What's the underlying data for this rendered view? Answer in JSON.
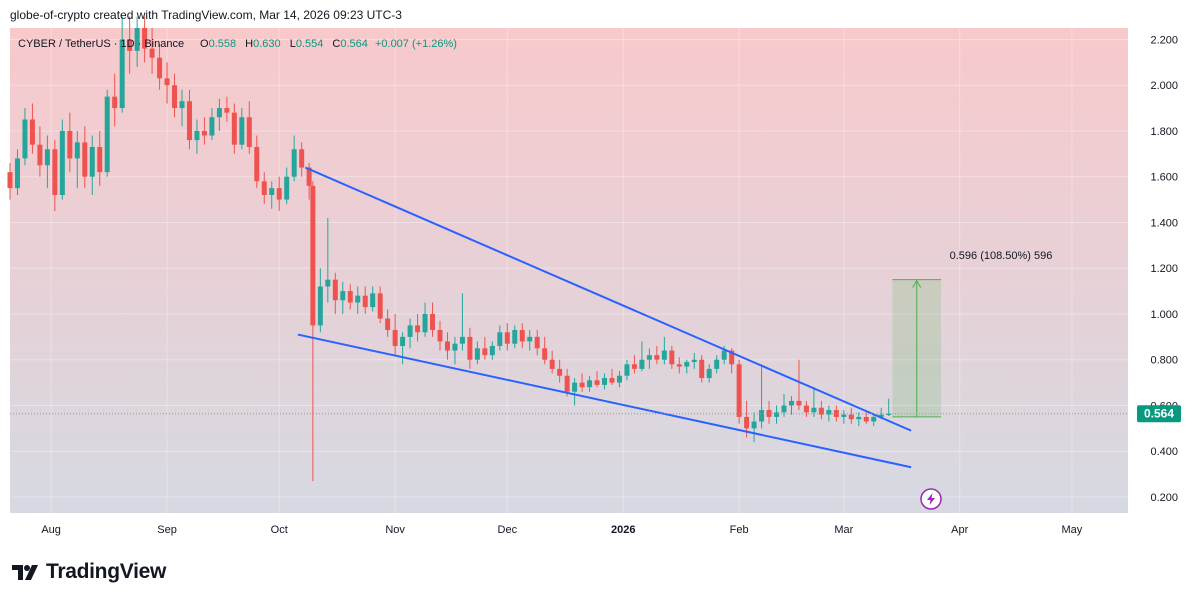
{
  "header": {
    "attribution": "globe-of-crypto created with TradingView.com, Mar 14, 2026 09:23 UTC-3"
  },
  "legend": {
    "symbol": "CYBER / TetherUS · 1D · Binance",
    "o_label": "O",
    "o_value": "0.558",
    "h_label": "H",
    "h_value": "0.630",
    "l_label": "L",
    "l_value": "0.554",
    "c_label": "C",
    "c_value": "0.564",
    "change": "+0.007 (+1.26%)"
  },
  "last_price": "0.564",
  "measure_label": "0.596 (108.50%) 596",
  "brand": {
    "name": "TradingView"
  },
  "colors": {
    "up": "#26a69a",
    "down": "#ef5350",
    "trendline": "#2962ff",
    "bg_top": "#f8c9cb",
    "bg_bottom": "#d6d9e2",
    "measure": "#4caf50",
    "badge": "#089981"
  },
  "icons": {
    "brand": "tradingview-logo-icon",
    "lightning": "lightning-icon"
  },
  "chart_data": {
    "type": "candlestick",
    "title": "CYBER / TetherUS · 1D · Binance",
    "x_ticks": [
      "Aug",
      "Sep",
      "Oct",
      "Nov",
      "Dec",
      "2026",
      "Feb",
      "Mar",
      "Apr",
      "May"
    ],
    "y_ticks": [
      "2.200",
      "2.000",
      "1.800",
      "1.600",
      "1.400",
      "1.200",
      "1.000",
      "0.800",
      "0.600",
      "0.400",
      "0.200"
    ],
    "ylim": [
      0.13,
      2.25
    ],
    "date_range": [
      "2025-07-21",
      "2026-05-16"
    ],
    "grid": true,
    "ohlc": [
      [
        "2025-07-21",
        1.62,
        1.66,
        1.5,
        1.55
      ],
      [
        "2025-07-23",
        1.55,
        1.72,
        1.52,
        1.68
      ],
      [
        "2025-07-25",
        1.68,
        1.9,
        1.65,
        1.85
      ],
      [
        "2025-07-27",
        1.85,
        1.92,
        1.7,
        1.74
      ],
      [
        "2025-07-29",
        1.74,
        1.82,
        1.6,
        1.65
      ],
      [
        "2025-07-31",
        1.65,
        1.78,
        1.55,
        1.72
      ],
      [
        "2025-08-02",
        1.72,
        1.76,
        1.45,
        1.52
      ],
      [
        "2025-08-04",
        1.52,
        1.85,
        1.5,
        1.8
      ],
      [
        "2025-08-06",
        1.8,
        1.88,
        1.62,
        1.68
      ],
      [
        "2025-08-08",
        1.68,
        1.8,
        1.55,
        1.75
      ],
      [
        "2025-08-10",
        1.75,
        1.82,
        1.55,
        1.6
      ],
      [
        "2025-08-12",
        1.6,
        1.78,
        1.52,
        1.73
      ],
      [
        "2025-08-14",
        1.73,
        1.8,
        1.56,
        1.62
      ],
      [
        "2025-08-16",
        1.62,
        1.98,
        1.6,
        1.95
      ],
      [
        "2025-08-18",
        1.95,
        2.05,
        1.82,
        1.9
      ],
      [
        "2025-08-20",
        1.9,
        2.3,
        1.88,
        2.2
      ],
      [
        "2025-08-22",
        2.2,
        2.3,
        2.05,
        2.15
      ],
      [
        "2025-08-24",
        2.15,
        2.3,
        2.08,
        2.25
      ],
      [
        "2025-08-26",
        2.25,
        2.3,
        2.1,
        2.16
      ],
      [
        "2025-08-28",
        2.16,
        2.25,
        2.05,
        2.12
      ],
      [
        "2025-08-30",
        2.12,
        2.18,
        1.98,
        2.03
      ],
      [
        "2025-09-01",
        2.03,
        2.1,
        1.92,
        2.0
      ],
      [
        "2025-09-03",
        2.0,
        2.05,
        1.86,
        1.9
      ],
      [
        "2025-09-05",
        1.9,
        1.98,
        1.82,
        1.93
      ],
      [
        "2025-09-07",
        1.93,
        1.98,
        1.72,
        1.76
      ],
      [
        "2025-09-09",
        1.76,
        1.85,
        1.7,
        1.8
      ],
      [
        "2025-09-11",
        1.8,
        1.86,
        1.74,
        1.78
      ],
      [
        "2025-09-13",
        1.78,
        1.9,
        1.76,
        1.86
      ],
      [
        "2025-09-15",
        1.86,
        1.94,
        1.8,
        1.9
      ],
      [
        "2025-09-17",
        1.9,
        1.95,
        1.84,
        1.88
      ],
      [
        "2025-09-19",
        1.88,
        1.92,
        1.7,
        1.74
      ],
      [
        "2025-09-21",
        1.74,
        1.9,
        1.72,
        1.86
      ],
      [
        "2025-09-23",
        1.86,
        1.93,
        1.7,
        1.73
      ],
      [
        "2025-09-25",
        1.73,
        1.78,
        1.55,
        1.58
      ],
      [
        "2025-09-27",
        1.58,
        1.62,
        1.48,
        1.52
      ],
      [
        "2025-09-29",
        1.52,
        1.58,
        1.46,
        1.55
      ],
      [
        "2025-10-01",
        1.55,
        1.6,
        1.45,
        1.5
      ],
      [
        "2025-10-03",
        1.5,
        1.64,
        1.48,
        1.6
      ],
      [
        "2025-10-05",
        1.6,
        1.78,
        1.58,
        1.72
      ],
      [
        "2025-10-07",
        1.72,
        1.75,
        1.6,
        1.64
      ],
      [
        "2025-10-09",
        1.64,
        1.66,
        1.5,
        1.56
      ],
      [
        "2025-10-10",
        1.56,
        1.58,
        0.27,
        0.95
      ],
      [
        "2025-10-12",
        0.95,
        1.2,
        0.92,
        1.12
      ],
      [
        "2025-10-14",
        1.12,
        1.42,
        1.05,
        1.15
      ],
      [
        "2025-10-16",
        1.15,
        1.18,
        1.0,
        1.06
      ],
      [
        "2025-10-18",
        1.06,
        1.14,
        1.0,
        1.1
      ],
      [
        "2025-10-20",
        1.1,
        1.13,
        1.02,
        1.05
      ],
      [
        "2025-10-22",
        1.05,
        1.12,
        1.0,
        1.08
      ],
      [
        "2025-10-24",
        1.08,
        1.12,
        1.0,
        1.03
      ],
      [
        "2025-10-26",
        1.03,
        1.12,
        1.01,
        1.09
      ],
      [
        "2025-10-28",
        1.09,
        1.12,
        0.96,
        0.98
      ],
      [
        "2025-10-30",
        0.98,
        1.02,
        0.9,
        0.93
      ],
      [
        "2025-11-01",
        0.93,
        1.0,
        0.82,
        0.86
      ],
      [
        "2025-11-03",
        0.86,
        0.92,
        0.78,
        0.9
      ],
      [
        "2025-11-05",
        0.9,
        0.98,
        0.85,
        0.95
      ],
      [
        "2025-11-07",
        0.95,
        1.0,
        0.88,
        0.92
      ],
      [
        "2025-11-09",
        0.92,
        1.05,
        0.9,
        1.0
      ],
      [
        "2025-11-11",
        1.0,
        1.05,
        0.9,
        0.93
      ],
      [
        "2025-11-13",
        0.93,
        0.97,
        0.84,
        0.88
      ],
      [
        "2025-11-15",
        0.88,
        0.92,
        0.8,
        0.84
      ],
      [
        "2025-11-17",
        0.84,
        0.9,
        0.78,
        0.87
      ],
      [
        "2025-11-19",
        0.87,
        1.09,
        0.84,
        0.9
      ],
      [
        "2025-11-21",
        0.9,
        0.94,
        0.76,
        0.8
      ],
      [
        "2025-11-23",
        0.8,
        0.88,
        0.78,
        0.85
      ],
      [
        "2025-11-25",
        0.85,
        0.9,
        0.8,
        0.82
      ],
      [
        "2025-11-27",
        0.82,
        0.88,
        0.8,
        0.86
      ],
      [
        "2025-11-29",
        0.86,
        0.95,
        0.84,
        0.92
      ],
      [
        "2025-12-01",
        0.92,
        0.96,
        0.84,
        0.87
      ],
      [
        "2025-12-03",
        0.87,
        0.95,
        0.85,
        0.93
      ],
      [
        "2025-12-05",
        0.93,
        0.96,
        0.85,
        0.88
      ],
      [
        "2025-12-07",
        0.88,
        0.93,
        0.84,
        0.9
      ],
      [
        "2025-12-09",
        0.9,
        0.93,
        0.82,
        0.85
      ],
      [
        "2025-12-11",
        0.85,
        0.9,
        0.78,
        0.8
      ],
      [
        "2025-12-13",
        0.8,
        0.84,
        0.74,
        0.76
      ],
      [
        "2025-12-15",
        0.76,
        0.8,
        0.7,
        0.73
      ],
      [
        "2025-12-17",
        0.73,
        0.76,
        0.64,
        0.66
      ],
      [
        "2025-12-19",
        0.66,
        0.72,
        0.6,
        0.7
      ],
      [
        "2025-12-21",
        0.7,
        0.74,
        0.66,
        0.68
      ],
      [
        "2025-12-23",
        0.68,
        0.73,
        0.66,
        0.71
      ],
      [
        "2025-12-25",
        0.71,
        0.75,
        0.68,
        0.69
      ],
      [
        "2025-12-27",
        0.69,
        0.74,
        0.67,
        0.72
      ],
      [
        "2025-12-29",
        0.72,
        0.76,
        0.69,
        0.7
      ],
      [
        "2025-12-31",
        0.7,
        0.75,
        0.68,
        0.73
      ],
      [
        "2026-01-02",
        0.73,
        0.8,
        0.71,
        0.78
      ],
      [
        "2026-01-04",
        0.78,
        0.82,
        0.74,
        0.76
      ],
      [
        "2026-01-06",
        0.76,
        0.88,
        0.75,
        0.8
      ],
      [
        "2026-01-08",
        0.8,
        0.85,
        0.76,
        0.82
      ],
      [
        "2026-01-10",
        0.82,
        0.86,
        0.78,
        0.8
      ],
      [
        "2026-01-12",
        0.8,
        0.9,
        0.78,
        0.84
      ],
      [
        "2026-01-14",
        0.84,
        0.86,
        0.76,
        0.78
      ],
      [
        "2026-01-16",
        0.78,
        0.81,
        0.74,
        0.77
      ],
      [
        "2026-01-18",
        0.77,
        0.8,
        0.74,
        0.79
      ],
      [
        "2026-01-20",
        0.79,
        0.83,
        0.76,
        0.8
      ],
      [
        "2026-01-22",
        0.8,
        0.82,
        0.7,
        0.72
      ],
      [
        "2026-01-24",
        0.72,
        0.78,
        0.7,
        0.76
      ],
      [
        "2026-01-26",
        0.76,
        0.82,
        0.74,
        0.8
      ],
      [
        "2026-01-28",
        0.8,
        0.86,
        0.78,
        0.84
      ],
      [
        "2026-01-30",
        0.84,
        0.85,
        0.74,
        0.78
      ],
      [
        "2026-02-01",
        0.78,
        0.8,
        0.52,
        0.55
      ],
      [
        "2026-02-03",
        0.55,
        0.62,
        0.46,
        0.5
      ],
      [
        "2026-02-05",
        0.5,
        0.57,
        0.44,
        0.53
      ],
      [
        "2026-02-07",
        0.53,
        0.78,
        0.5,
        0.58
      ],
      [
        "2026-02-09",
        0.58,
        0.62,
        0.52,
        0.55
      ],
      [
        "2026-02-11",
        0.55,
        0.6,
        0.52,
        0.57
      ],
      [
        "2026-02-13",
        0.57,
        0.65,
        0.55,
        0.6
      ],
      [
        "2026-02-15",
        0.6,
        0.64,
        0.56,
        0.62
      ],
      [
        "2026-02-17",
        0.62,
        0.8,
        0.58,
        0.6
      ],
      [
        "2026-02-19",
        0.6,
        0.62,
        0.55,
        0.57
      ],
      [
        "2026-02-21",
        0.57,
        0.68,
        0.55,
        0.59
      ],
      [
        "2026-02-23",
        0.59,
        0.62,
        0.54,
        0.56
      ],
      [
        "2026-02-25",
        0.56,
        0.6,
        0.53,
        0.58
      ],
      [
        "2026-02-27",
        0.58,
        0.6,
        0.53,
        0.55
      ],
      [
        "2026-03-01",
        0.55,
        0.58,
        0.52,
        0.56
      ],
      [
        "2026-03-03",
        0.56,
        0.59,
        0.52,
        0.54
      ],
      [
        "2026-03-05",
        0.54,
        0.57,
        0.51,
        0.55
      ],
      [
        "2026-03-07",
        0.55,
        0.57,
        0.52,
        0.53
      ],
      [
        "2026-03-09",
        0.53,
        0.56,
        0.51,
        0.55
      ],
      [
        "2026-03-11",
        0.55,
        0.59,
        0.54,
        0.56
      ],
      [
        "2026-03-13",
        0.558,
        0.63,
        0.554,
        0.564
      ]
    ],
    "trendlines": [
      {
        "from": [
          "2025-10-08",
          1.64
        ],
        "to": [
          "2026-03-19",
          0.49
        ]
      },
      {
        "from": [
          "2025-10-06",
          0.91
        ],
        "to": [
          "2026-03-19",
          0.33
        ]
      }
    ],
    "last_price": 0.564,
    "projection": {
      "from_date": "2026-03-14",
      "to_date": "2026-03-27",
      "low": 0.55,
      "high": 1.15,
      "label": "0.596 (108.50%) 596"
    }
  }
}
